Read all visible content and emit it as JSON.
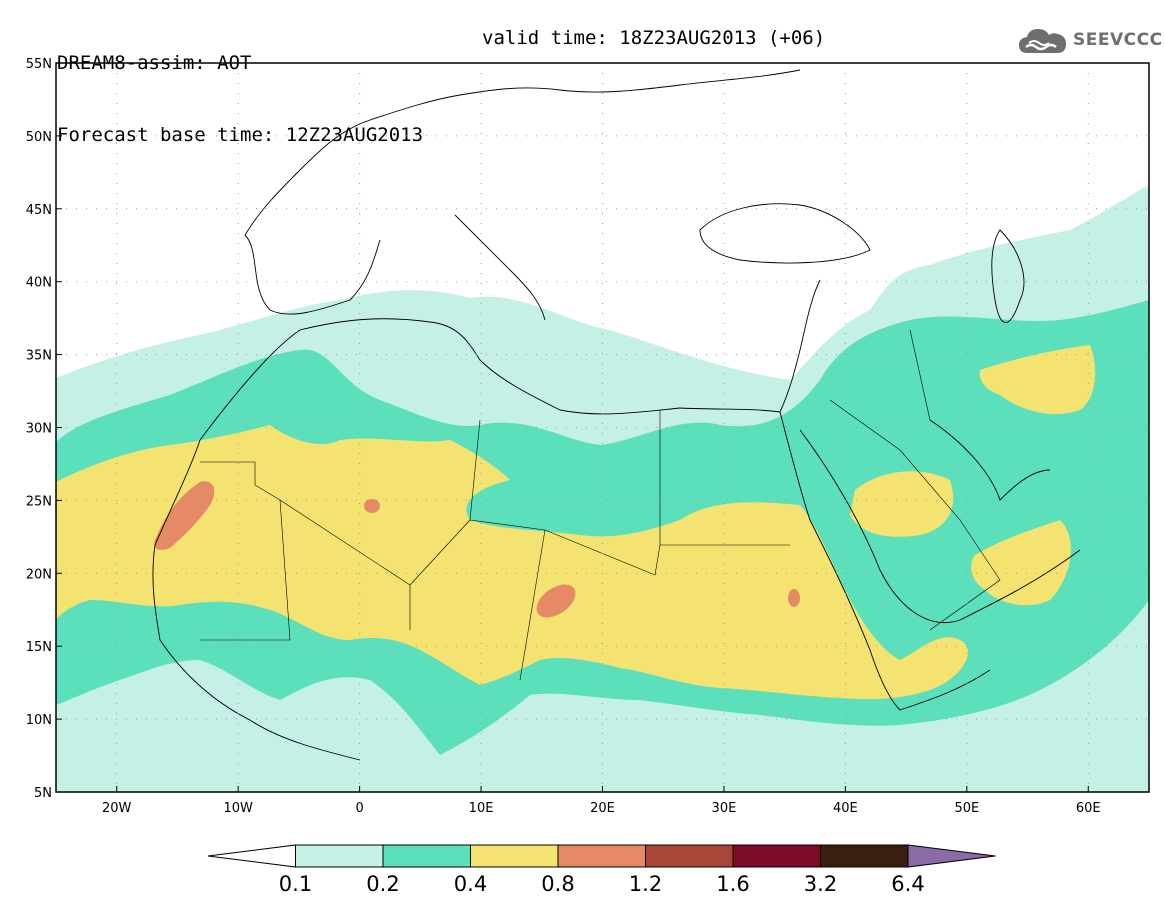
{
  "header": {
    "model_line": "DREAM8-assim: AOT",
    "base_time_line": "Forecast base time: 12Z23AUG2013",
    "valid_time_line": "valid time: 18Z23AUG2013 (+06)"
  },
  "logo": {
    "text": "SEEVCCC",
    "icon": "cloud-icon"
  },
  "map": {
    "region": "North Africa, Mediterranean, Middle East",
    "lon_range": [
      -25,
      65
    ],
    "lat_range": [
      5,
      55
    ],
    "lat_ticks": [
      "55N",
      "50N",
      "45N",
      "40N",
      "35N",
      "30N",
      "25N",
      "20N",
      "15N",
      "10N",
      "5N"
    ],
    "lon_ticks": [
      "20W",
      "10W",
      "0",
      "10E",
      "20E",
      "30E",
      "40E",
      "50E",
      "60E"
    ],
    "grid": "dotted"
  },
  "colorbar": {
    "labels": [
      "0.1",
      "0.2",
      "0.4",
      "0.8",
      "1.2",
      "1.6",
      "3.2",
      "6.4"
    ],
    "colors": [
      "#ffffff",
      "#c4f0e6",
      "#5cdfbb",
      "#f5e371",
      "#e68a66",
      "#a84639",
      "#7c0c27",
      "#3b2012",
      "#8c6aa6"
    ]
  },
  "colors": {
    "level1": "#c4f0e6",
    "level2": "#5cdfbb",
    "level3": "#f5e371",
    "level4": "#e68a66"
  }
}
